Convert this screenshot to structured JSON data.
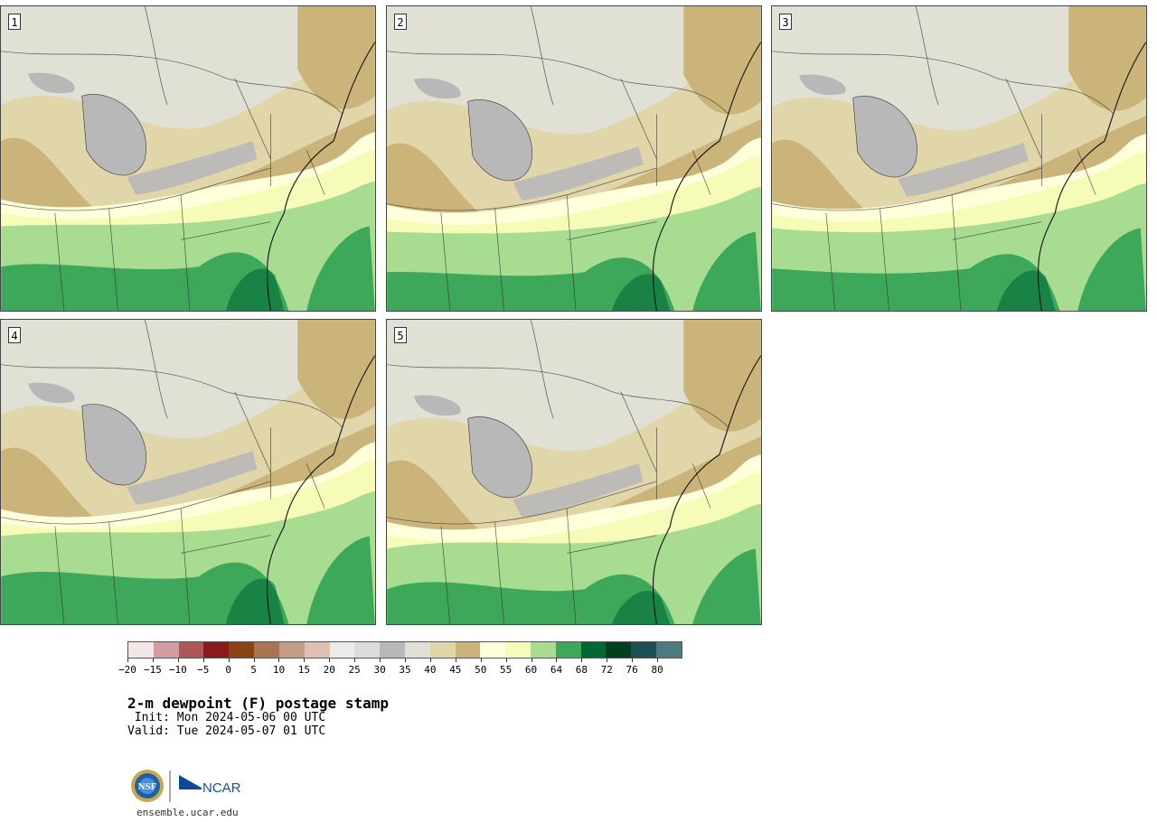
{
  "panels": [
    {
      "label": "1"
    },
    {
      "label": "2"
    },
    {
      "label": "3"
    },
    {
      "label": "4"
    },
    {
      "label": "5"
    }
  ],
  "colorbar": {
    "ticks": [
      "−20",
      "−15",
      "−10",
      "−5",
      "0",
      "5",
      "10",
      "15",
      "20",
      "25",
      "30",
      "35",
      "40",
      "45",
      "50",
      "55",
      "60",
      "64",
      "68",
      "72",
      "76",
      "80"
    ],
    "colors": [
      "#f3e6e6",
      "#d19da0",
      "#ad575b",
      "#8b1a1f",
      "#8b4513",
      "#a87451",
      "#c49d88",
      "#dcc0b0",
      "#ececec",
      "#dcdcdc",
      "#b8b8b8",
      "#e0e0d5",
      "#e1d5aa",
      "#cbb47a",
      "#ffffdc",
      "#f6fcb8",
      "#a8dc90",
      "#3da85a",
      "#006a35",
      "#003f1f",
      "#1d5055",
      "#4d7a80"
    ]
  },
  "title": "2-m dewpoint (F) postage stamp",
  "init": " Init: Mon 2024-05-06 00 UTC",
  "valid": "Valid: Tue 2024-05-07 01 UTC",
  "footer": "ensemble.ucar.edu",
  "logos": {
    "nsf": "NSF",
    "ncar": "NCAR"
  },
  "map_colors": {
    "light_gray": "#e0e0d5",
    "gray_lakes": "#b8b8b8",
    "tan_light": "#e1d5aa",
    "tan": "#cbb47a",
    "cream": "#ffffdc",
    "yellow": "#f6fcb8",
    "green_light": "#a8dc90",
    "green": "#3da85a",
    "green_dark": "#006a35"
  }
}
